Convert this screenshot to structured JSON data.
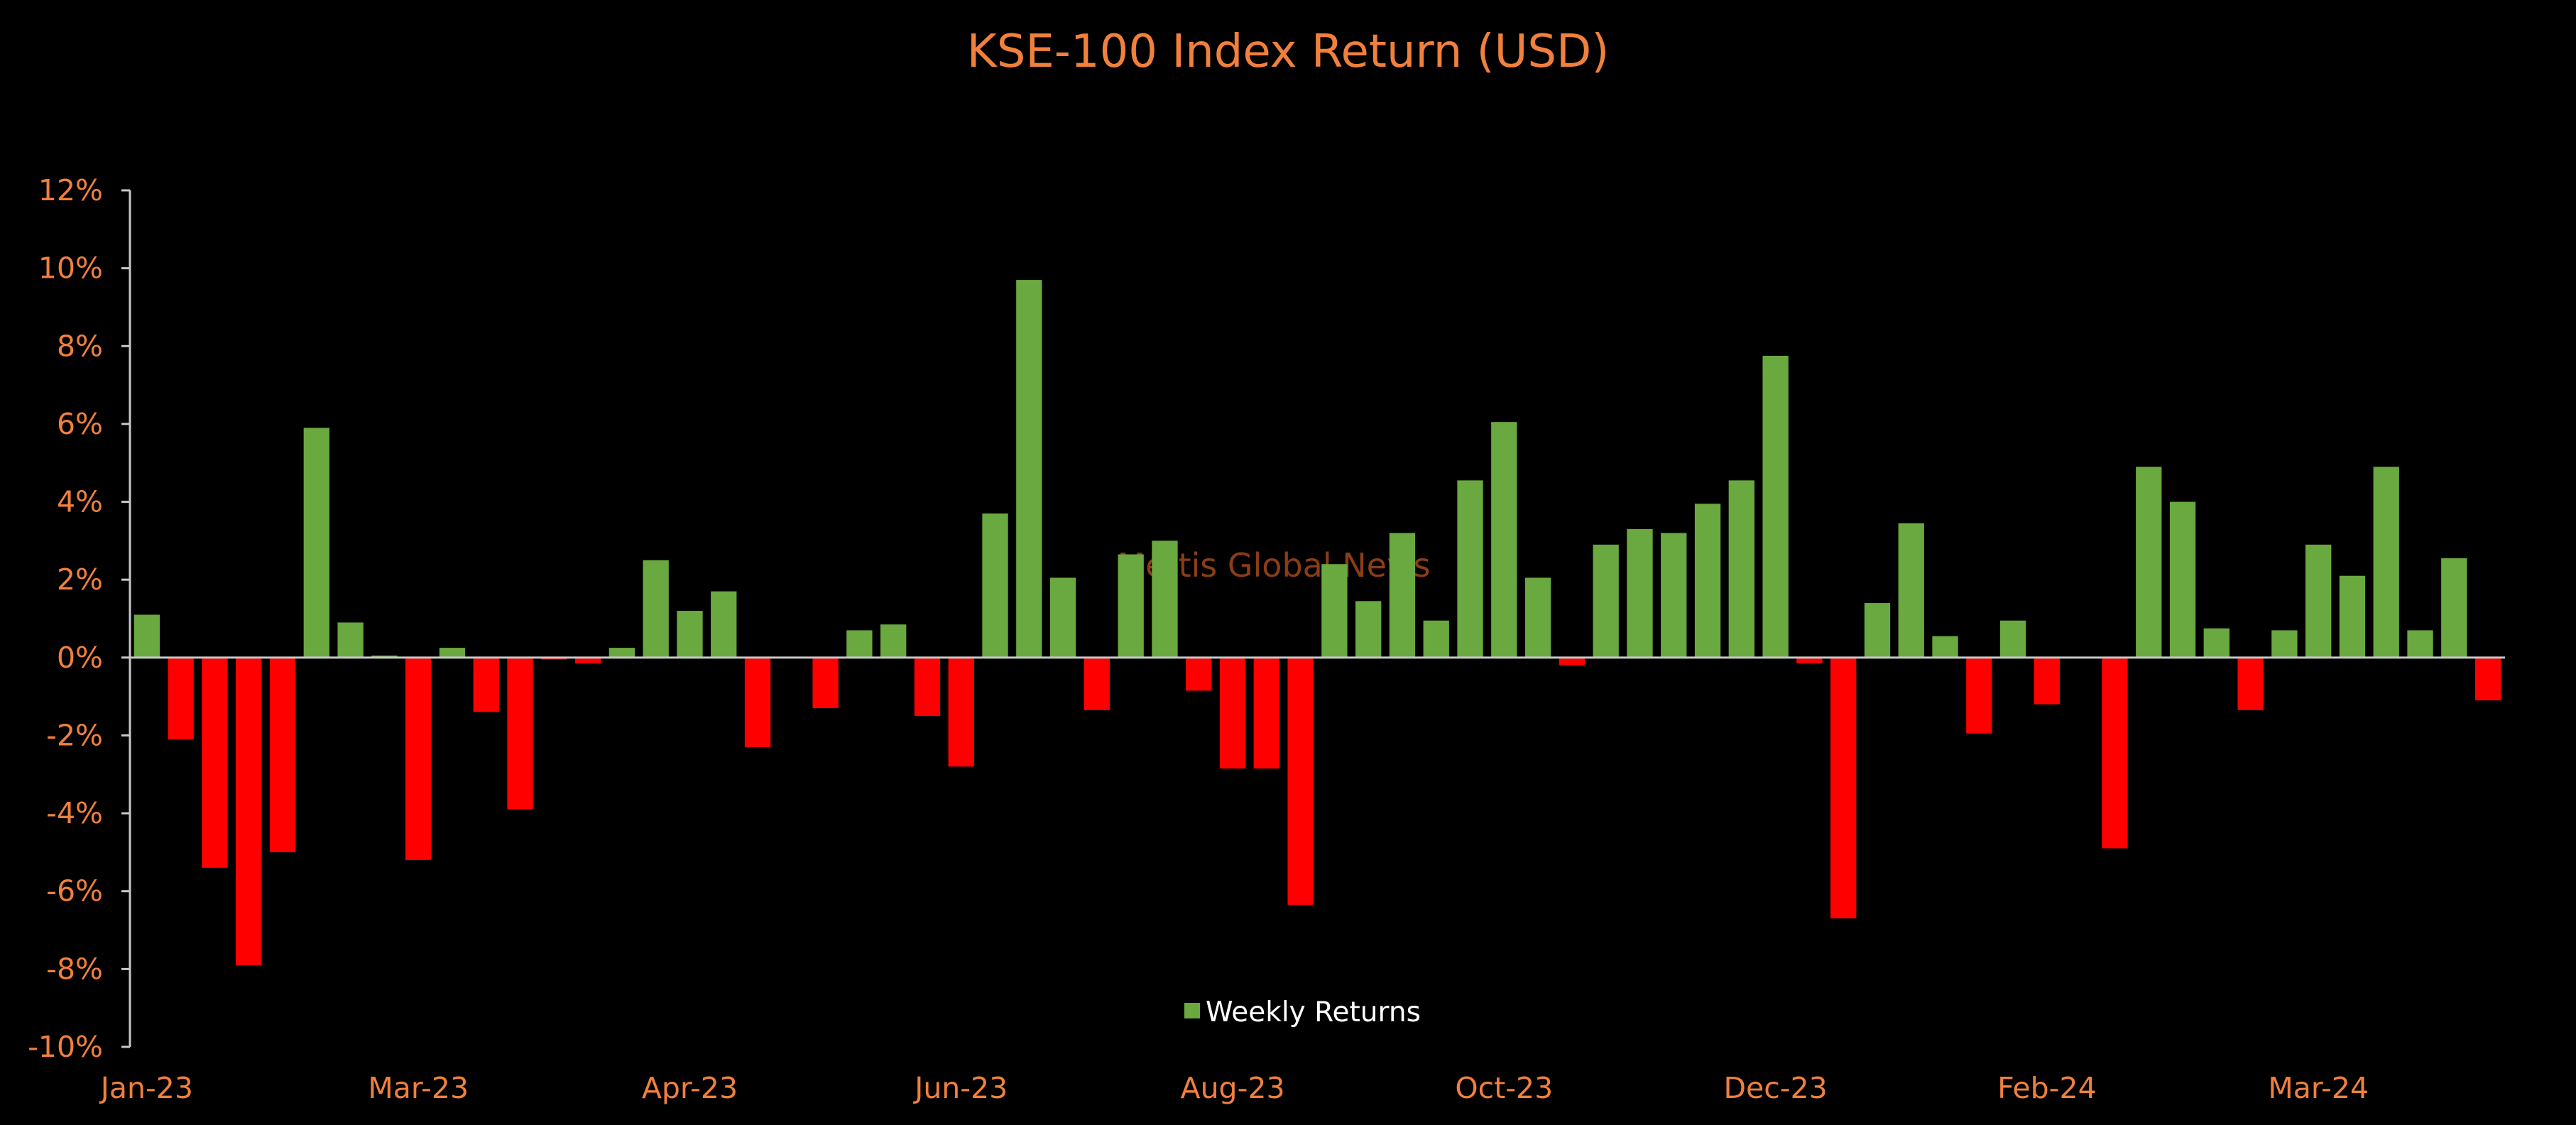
{
  "colors": {
    "background": "#000000",
    "positive": "#6aa840",
    "negative": "#ff0000",
    "title": "#f0803c",
    "tick_labels": "#f0803c",
    "axis": "#c8c8c8",
    "legend_text": "#ffffff",
    "watermark": "#8a3d16"
  },
  "watermark": "Mettis Global News",
  "chart_data": {
    "type": "bar",
    "title": "KSE-100 Index Return (USD)",
    "xlabel": "",
    "ylabel": "",
    "ylim": [
      -10,
      12
    ],
    "y_ticks": [
      12,
      10,
      8,
      6,
      4,
      2,
      0,
      -2,
      -4,
      -6,
      -8,
      -10
    ],
    "y_tick_labels": [
      "12%",
      "10%",
      "8%",
      "6%",
      "4%",
      "2%",
      "0%",
      "-2%",
      "-4%",
      "-6%",
      "-8%",
      "-10%"
    ],
    "x_tick_labels": [
      "Jan-23",
      "Mar-23",
      "Apr-23",
      "Jun-23",
      "Aug-23",
      "Oct-23",
      "Dec-23",
      "Feb-24",
      "Mar-24"
    ],
    "x_tick_positions": [
      0,
      8,
      16,
      24,
      32,
      40,
      48,
      56,
      64
    ],
    "legend": {
      "position": "bottom-center"
    },
    "grid": false,
    "series": [
      {
        "name": "Weekly Returns",
        "values": [
          1.1,
          -2.1,
          -5.4,
          -7.9,
          -5.0,
          5.9,
          0.9,
          0.05,
          -5.2,
          0.25,
          -1.4,
          -3.9,
          -0.05,
          -0.15,
          0.25,
          2.5,
          1.2,
          1.7,
          -2.3,
          0,
          -1.3,
          0.7,
          0.85,
          -1.5,
          -2.8,
          3.7,
          9.7,
          2.05,
          -1.35,
          2.65,
          3.0,
          -0.85,
          -2.85,
          -2.85,
          -6.35,
          2.4,
          1.45,
          3.2,
          0.95,
          4.55,
          6.05,
          2.05,
          -0.2,
          2.9,
          3.3,
          3.2,
          3.95,
          4.55,
          7.75,
          -0.15,
          -6.7,
          1.4,
          3.45,
          0.55,
          -1.95,
          0.95,
          -1.2,
          0,
          -4.9,
          4.9,
          4.0,
          0.75,
          -1.35,
          0.7,
          2.9,
          2.1,
          4.9,
          0.7,
          2.55,
          -1.1
        ]
      }
    ]
  }
}
